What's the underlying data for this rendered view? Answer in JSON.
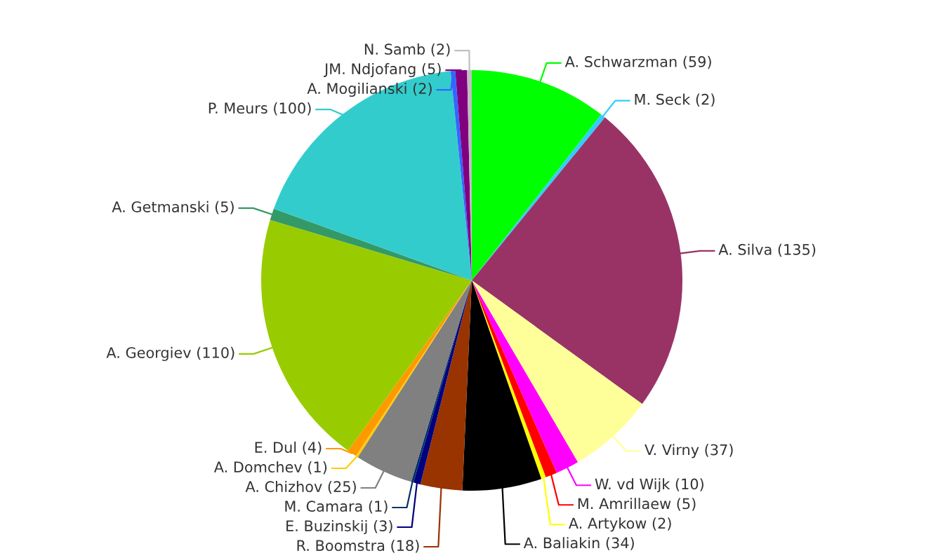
{
  "chart_data": {
    "type": "pie",
    "categories": [
      "A. Schwarzman (59)",
      "M. Seck (2)",
      "A. Silva (135)",
      "V. Virny (37)",
      "W. vd Wijk (10)",
      "M. Amrillaew (5)",
      "A. Artykow (2)",
      "A. Baliakin (34)",
      "R. Boomstra (18)",
      "E. Buzinskij (3)",
      "M. Camara (1)",
      "A. Chizhov (25)",
      "A. Domchev (1)",
      "E. Dul (4)",
      "A. Georgiev (110)",
      "A. Getmanski (5)",
      "P. Meurs (100)",
      "A. Mogilianski (2)",
      "JM. Ndjofang (5)",
      "N. Samb (2)"
    ],
    "values": [
      59,
      2,
      135,
      37,
      10,
      5,
      2,
      34,
      18,
      3,
      1,
      25,
      1,
      4,
      110,
      5,
      100,
      2,
      5,
      2
    ],
    "colors": [
      "#00ff00",
      "#33ccff",
      "#993366",
      "#ffff99",
      "#ff00ff",
      "#ff0000",
      "#ffff00",
      "#000000",
      "#993300",
      "#000080",
      "#003366",
      "#808080",
      "#ffcc00",
      "#ff9900",
      "#99cc00",
      "#339966",
      "#33cccc",
      "#3366ff",
      "#800080",
      "#c0c0c0"
    ]
  }
}
